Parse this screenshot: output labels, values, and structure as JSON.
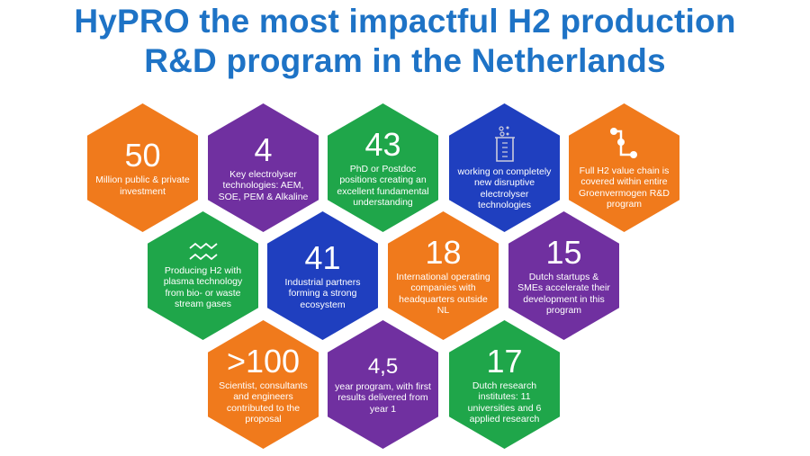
{
  "title": {
    "line1": "HyPRO the most impactful H2 production",
    "line2": "R&D program in the Netherlands"
  },
  "colors": {
    "title": "#1e73c6",
    "orange": "#f07a1c",
    "purple": "#7030a0",
    "green": "#1fa64a",
    "blue": "#1f3fbf"
  },
  "tiles": [
    {
      "number": "50",
      "text": "Million public & private investment"
    },
    {
      "number": "4",
      "text": "Key electrolyser technologies: AEM, SOE, PEM & Alkaline"
    },
    {
      "number": "43",
      "text": "PhD or Postdoc positions creating an excellent fundamental understanding"
    },
    {
      "icon": "beaker-icon",
      "text": "working on completely new disruptive electrolyser technologies"
    },
    {
      "icon": "value-chain-icon",
      "text": "Full H2 value chain is covered within entire Groenvermogen R&D program"
    },
    {
      "icon": "waves-icon",
      "text": "Producing H2 with plasma technology from bio- or waste stream gases"
    },
    {
      "number": "41",
      "text": "Industrial partners forming a strong ecosystem"
    },
    {
      "number": "18",
      "text": "International operating companies with headquarters outside NL"
    },
    {
      "number": "15",
      "text": "Dutch startups & SMEs accelerate their development in this program"
    },
    {
      "number": ">100",
      "text": "Scientist, consultants and engineers contributed to the proposal"
    },
    {
      "number": "4,5",
      "text": "year program, with first results delivered from year 1"
    },
    {
      "number": "17",
      "text": "Dutch research institutes: 11 universities and 6 applied research"
    }
  ]
}
